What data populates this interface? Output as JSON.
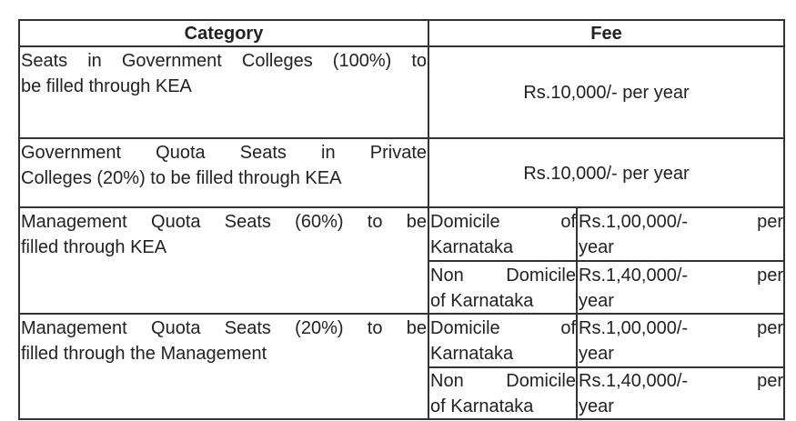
{
  "table": {
    "headers": [
      "Category",
      "Fee"
    ],
    "rows": [
      {
        "category": [
          "Seats in  Government Colleges (100%) to",
          "be filled  through KEA"
        ],
        "fee": "Rs.10,000/- per year"
      },
      {
        "category": [
          "Government  Quota  Seats  in  Private",
          "Colleges (20%) to be filled  through KEA"
        ],
        "fee": "Rs.10,000/- per year"
      },
      {
        "category": [
          "Management  Quota  Seats  (60%)  to  be",
          "filled  through KEA"
        ],
        "sub": [
          {
            "type": [
              "Domicile of",
              "Karnataka"
            ],
            "fee": [
              "Rs.1,00,000/- per",
              "year"
            ]
          },
          {
            "type": [
              "Non Domicile",
              "of Karnataka"
            ],
            "fee": [
              "Rs.1,40,000/- per",
              "year"
            ]
          }
        ]
      },
      {
        "category": [
          "Management  Quota  Seats  (20%)  to  be",
          "filled  through the Management"
        ],
        "sub": [
          {
            "type": [
              "Domicile of",
              "Karnataka"
            ],
            "fee": [
              "Rs.1,00,000/- per",
              "year"
            ]
          },
          {
            "type": [
              "Non Domicile",
              "of Karnataka"
            ],
            "fee": [
              "Rs.1,40,000/- per",
              "year"
            ]
          }
        ]
      }
    ]
  }
}
